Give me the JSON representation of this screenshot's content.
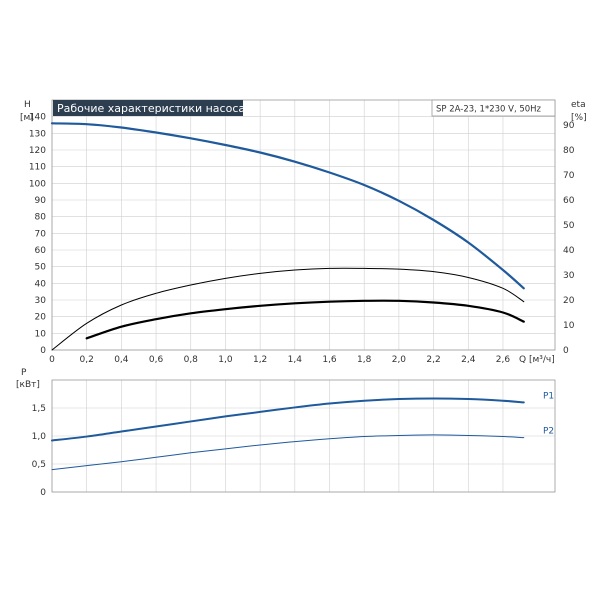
{
  "chart_data": [
    {
      "type": "line",
      "title": "Рабочие характеристики насоса",
      "subtitle": "SP 2A-23, 1*230 V, 50Hz",
      "xlabel": "Q [м³/ч]",
      "ylabel_left": [
        "H",
        "[м]"
      ],
      "ylabel_right": [
        "eta",
        "[%]"
      ],
      "xlim": [
        0,
        2.9
      ],
      "ylim_left": [
        0,
        150
      ],
      "ylim_right": [
        0,
        100
      ],
      "grid": true,
      "x_ticks": [
        {
          "v": 0,
          "label": "0"
        },
        {
          "v": 0.2,
          "label": "0,2"
        },
        {
          "v": 0.4,
          "label": "0,4"
        },
        {
          "v": 0.6,
          "label": "0,6"
        },
        {
          "v": 0.8,
          "label": "0,8"
        },
        {
          "v": 1.0,
          "label": "1,0"
        },
        {
          "v": 1.2,
          "label": "1,2"
        },
        {
          "v": 1.4,
          "label": "1,4"
        },
        {
          "v": 1.6,
          "label": "1,6"
        },
        {
          "v": 1.8,
          "label": "1,8"
        },
        {
          "v": 2.0,
          "label": "2,0"
        },
        {
          "v": 2.2,
          "label": "2,2"
        },
        {
          "v": 2.4,
          "label": "2,4"
        },
        {
          "v": 2.6,
          "label": "2,6"
        }
      ],
      "y_ticks_left": [
        {
          "v": 0,
          "label": "0"
        },
        {
          "v": 10,
          "label": "10"
        },
        {
          "v": 20,
          "label": "20"
        },
        {
          "v": 30,
          "label": "30"
        },
        {
          "v": 40,
          "label": "40"
        },
        {
          "v": 50,
          "label": "50"
        },
        {
          "v": 60,
          "label": "60"
        },
        {
          "v": 70,
          "label": "70"
        },
        {
          "v": 80,
          "label": "80"
        },
        {
          "v": 90,
          "label": "90"
        },
        {
          "v": 100,
          "label": "100"
        },
        {
          "v": 110,
          "label": "110"
        },
        {
          "v": 120,
          "label": "120"
        },
        {
          "v": 130,
          "label": "130"
        },
        {
          "v": 140,
          "label": "140"
        }
      ],
      "y_ticks_right": [
        {
          "v": 0,
          "label": "0"
        },
        {
          "v": 10,
          "label": "10"
        },
        {
          "v": 20,
          "label": "20"
        },
        {
          "v": 30,
          "label": "30"
        },
        {
          "v": 40,
          "label": "40"
        },
        {
          "v": 50,
          "label": "50"
        },
        {
          "v": 60,
          "label": "60"
        },
        {
          "v": 70,
          "label": "70"
        },
        {
          "v": 80,
          "label": "80"
        },
        {
          "v": 90,
          "label": "90"
        }
      ],
      "series": [
        {
          "axis": "left",
          "color": "#1f5a9c",
          "weight": "bold",
          "x": [
            0,
            0.2,
            0.4,
            0.6,
            0.8,
            1.0,
            1.2,
            1.4,
            1.6,
            1.8,
            2.0,
            2.2,
            2.4,
            2.6,
            2.72
          ],
          "values": [
            136,
            135.5,
            133.5,
            130.5,
            127,
            123,
            118.5,
            113,
            106.5,
            99,
            89.5,
            78,
            64.5,
            48,
            37
          ]
        },
        {
          "axis": "left",
          "color": "#000000",
          "weight": "thin",
          "x": [
            0,
            0.2,
            0.4,
            0.6,
            0.8,
            1.0,
            1.2,
            1.4,
            1.6,
            1.8,
            2.0,
            2.2,
            2.4,
            2.6,
            2.72
          ],
          "values": [
            0,
            16,
            27,
            34,
            39,
            43,
            46,
            48,
            49,
            49,
            48.5,
            47,
            43.5,
            37,
            29
          ]
        },
        {
          "axis": "left",
          "color": "#000000",
          "weight": "bold",
          "x": [
            0.2,
            0.4,
            0.6,
            0.8,
            1.0,
            1.2,
            1.4,
            1.6,
            1.8,
            2.0,
            2.2,
            2.4,
            2.6,
            2.72
          ],
          "values": [
            7,
            14,
            18.5,
            22,
            24.5,
            26.5,
            28,
            29,
            29.5,
            29.5,
            28.5,
            26.5,
            22.5,
            17
          ]
        }
      ]
    },
    {
      "type": "line",
      "xlabel": "",
      "ylabel": [
        "P",
        "[кВт]"
      ],
      "xlim": [
        0,
        2.9
      ],
      "ylim": [
        0,
        2.0
      ],
      "grid": true,
      "y_ticks": [
        {
          "v": 0,
          "label": "0"
        },
        {
          "v": 0.5,
          "label": "0,5"
        },
        {
          "v": 1.0,
          "label": "1,0"
        },
        {
          "v": 1.5,
          "label": "1,5"
        }
      ],
      "series": [
        {
          "name": "P1",
          "color": "#1f5a9c",
          "weight": "bold",
          "x": [
            0,
            0.2,
            0.4,
            0.6,
            0.8,
            1.0,
            1.2,
            1.4,
            1.6,
            1.8,
            2.0,
            2.2,
            2.4,
            2.6,
            2.72
          ],
          "values": [
            0.92,
            0.99,
            1.08,
            1.17,
            1.26,
            1.35,
            1.43,
            1.51,
            1.58,
            1.63,
            1.66,
            1.67,
            1.66,
            1.63,
            1.6
          ]
        },
        {
          "name": "P2",
          "color": "#1f5a9c",
          "weight": "thin",
          "x": [
            0,
            0.2,
            0.4,
            0.6,
            0.8,
            1.0,
            1.2,
            1.4,
            1.6,
            1.8,
            2.0,
            2.2,
            2.4,
            2.6,
            2.72
          ],
          "values": [
            0.4,
            0.47,
            0.54,
            0.62,
            0.7,
            0.77,
            0.84,
            0.9,
            0.95,
            0.99,
            1.01,
            1.02,
            1.01,
            0.99,
            0.97
          ]
        }
      ]
    }
  ]
}
